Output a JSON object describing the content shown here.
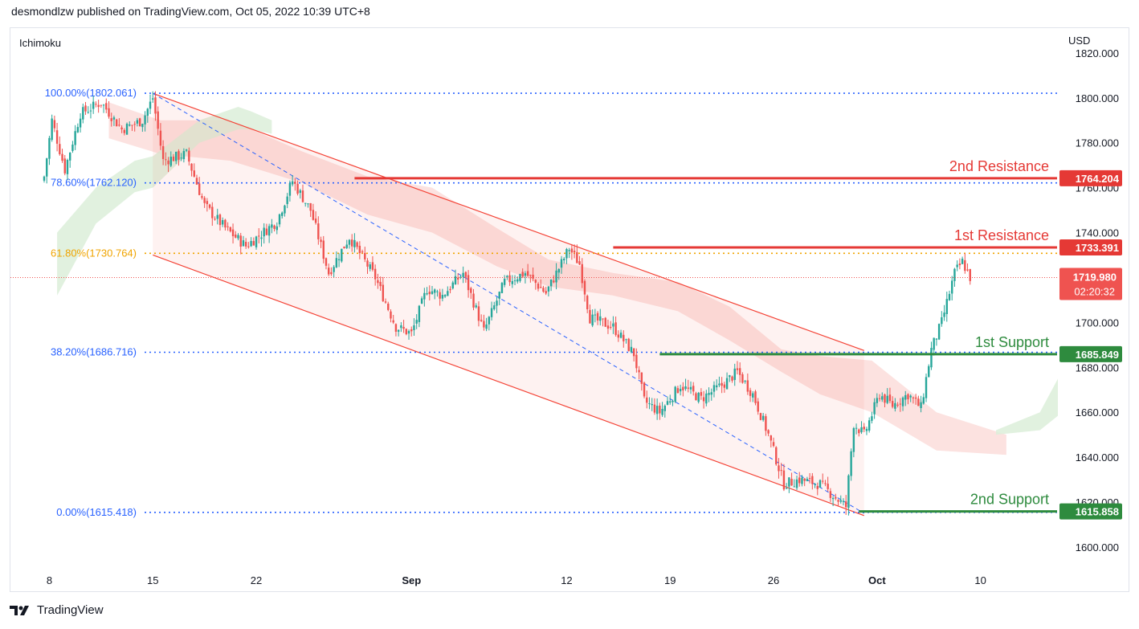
{
  "header": {
    "publisher_line": "desmondlzw published on TradingView.com, Oct 05, 2022 10:39 UTC+8"
  },
  "indicator_label": "Ichimoku",
  "currency_label": "USD",
  "footer": {
    "brand": "TradingView"
  },
  "colors": {
    "up": "#26a69a",
    "down": "#ef5350",
    "fib": "#2962ff",
    "fib_gold": "#f0a400",
    "resistance": "#e53935",
    "support": "#2e8b3e",
    "channel": "#f44336",
    "cloud_red": "#fbd8d6",
    "cloud_green": "#dcefd9",
    "axis_text": "#131722"
  },
  "chart_data": {
    "type": "candlestick",
    "symbol_price_unit": "USD",
    "ylim": [
      1593,
      1823
    ],
    "y_ticks": [
      "1820.000",
      "1800.000",
      "1780.000",
      "1760.000",
      "1740.000",
      "1720.000",
      "1700.000",
      "1680.000",
      "1660.000",
      "1640.000",
      "1620.000",
      "1600.000"
    ],
    "y_tick_values": [
      1820,
      1800,
      1780,
      1760,
      1740,
      1720,
      1700,
      1680,
      1660,
      1640,
      1620,
      1600
    ],
    "x_ticks": [
      {
        "label": "8",
        "bar": 2
      },
      {
        "label": "15",
        "bar": 42
      },
      {
        "label": "22",
        "bar": 82
      },
      {
        "label": "Sep",
        "bar": 142
      },
      {
        "label": "12",
        "bar": 202
      },
      {
        "label": "19",
        "bar": 242
      },
      {
        "label": "26",
        "bar": 282
      },
      {
        "label": "Oct",
        "bar": 322
      },
      {
        "label": "10",
        "bar": 362
      }
    ],
    "fibonacci": [
      {
        "label": "100.00%(1802.061)",
        "value": 1802.061
      },
      {
        "label": "78.60%(1762.120)",
        "value": 1762.12
      },
      {
        "label": "61.80%(1730.764)",
        "value": 1730.764
      },
      {
        "label": "38.20%(1686.716)",
        "value": 1686.716
      },
      {
        "label": "0.00%(1615.418)",
        "value": 1615.418
      }
    ],
    "levels": [
      {
        "name": "2nd Resistance",
        "value": 1764.204,
        "badge": "1764.204",
        "kind": "resistance",
        "from_bar": 120
      },
      {
        "name": "1st Resistance",
        "value": 1733.391,
        "badge": "1733.391",
        "kind": "resistance",
        "from_bar": 220
      },
      {
        "name": "1st Support",
        "value": 1685.849,
        "badge": "1685.849",
        "kind": "support",
        "from_bar": 238
      },
      {
        "name": "2nd Support",
        "value": 1615.858,
        "badge": "1615.858",
        "kind": "support",
        "from_bar": 315
      }
    ],
    "current_price": {
      "value": 1719.98,
      "label": "1719.980",
      "countdown": "02:20:32"
    },
    "channel": {
      "upper": [
        {
          "bar": 42,
          "value": 1802
        },
        {
          "bar": 317,
          "value": 1687.5
        }
      ],
      "lower": [
        {
          "bar": 42,
          "value": 1730
        },
        {
          "bar": 317,
          "value": 1614
        }
      ],
      "mid_dashed": [
        {
          "bar": 42,
          "value": 1802
        },
        {
          "bar": 317,
          "value": 1615
        }
      ]
    },
    "close_anchors": [
      {
        "bar": 0,
        "value": 1765
      },
      {
        "bar": 3,
        "value": 1790
      },
      {
        "bar": 8,
        "value": 1768
      },
      {
        "bar": 14,
        "value": 1793
      },
      {
        "bar": 22,
        "value": 1798
      },
      {
        "bar": 30,
        "value": 1786
      },
      {
        "bar": 38,
        "value": 1790
      },
      {
        "bar": 42,
        "value": 1800
      },
      {
        "bar": 46,
        "value": 1772
      },
      {
        "bar": 55,
        "value": 1775
      },
      {
        "bar": 62,
        "value": 1752
      },
      {
        "bar": 70,
        "value": 1742
      },
      {
        "bar": 78,
        "value": 1734
      },
      {
        "bar": 90,
        "value": 1745
      },
      {
        "bar": 96,
        "value": 1763
      },
      {
        "bar": 103,
        "value": 1750
      },
      {
        "bar": 110,
        "value": 1722
      },
      {
        "bar": 118,
        "value": 1738
      },
      {
        "bar": 128,
        "value": 1720
      },
      {
        "bar": 136,
        "value": 1698
      },
      {
        "bar": 142,
        "value": 1695
      },
      {
        "bar": 148,
        "value": 1715
      },
      {
        "bar": 154,
        "value": 1712
      },
      {
        "bar": 162,
        "value": 1722
      },
      {
        "bar": 170,
        "value": 1696
      },
      {
        "bar": 178,
        "value": 1718
      },
      {
        "bar": 186,
        "value": 1722
      },
      {
        "bar": 194,
        "value": 1713
      },
      {
        "bar": 203,
        "value": 1733
      },
      {
        "bar": 207,
        "value": 1726
      },
      {
        "bar": 211,
        "value": 1702
      },
      {
        "bar": 220,
        "value": 1698
      },
      {
        "bar": 228,
        "value": 1686
      },
      {
        "bar": 232,
        "value": 1665
      },
      {
        "bar": 238,
        "value": 1660
      },
      {
        "bar": 246,
        "value": 1672
      },
      {
        "bar": 254,
        "value": 1666
      },
      {
        "bar": 262,
        "value": 1672
      },
      {
        "bar": 268,
        "value": 1678
      },
      {
        "bar": 274,
        "value": 1668
      },
      {
        "bar": 280,
        "value": 1650
      },
      {
        "bar": 286,
        "value": 1628
      },
      {
        "bar": 292,
        "value": 1630
      },
      {
        "bar": 300,
        "value": 1628
      },
      {
        "bar": 306,
        "value": 1622
      },
      {
        "bar": 310,
        "value": 1618
      },
      {
        "bar": 313,
        "value": 1655
      },
      {
        "bar": 317,
        "value": 1650
      },
      {
        "bar": 323,
        "value": 1668
      },
      {
        "bar": 328,
        "value": 1663
      },
      {
        "bar": 334,
        "value": 1668
      },
      {
        "bar": 339,
        "value": 1662
      },
      {
        "bar": 343,
        "value": 1688
      },
      {
        "bar": 347,
        "value": 1700
      },
      {
        "bar": 352,
        "value": 1722
      },
      {
        "bar": 355,
        "value": 1727
      },
      {
        "bar": 358,
        "value": 1720
      }
    ],
    "cloud": {
      "red_upper": [
        {
          "bar": 25,
          "value": 1798
        },
        {
          "bar": 45,
          "value": 1790
        },
        {
          "bar": 72,
          "value": 1790
        },
        {
          "bar": 100,
          "value": 1776
        },
        {
          "bar": 125,
          "value": 1765
        },
        {
          "bar": 150,
          "value": 1760
        },
        {
          "bar": 175,
          "value": 1742
        },
        {
          "bar": 195,
          "value": 1728
        },
        {
          "bar": 220,
          "value": 1722
        },
        {
          "bar": 245,
          "value": 1718
        },
        {
          "bar": 265,
          "value": 1707
        },
        {
          "bar": 285,
          "value": 1688
        },
        {
          "bar": 300,
          "value": 1685
        },
        {
          "bar": 320,
          "value": 1683
        },
        {
          "bar": 345,
          "value": 1660
        },
        {
          "bar": 372,
          "value": 1650
        }
      ],
      "red_lower": [
        {
          "bar": 25,
          "value": 1782
        },
        {
          "bar": 45,
          "value": 1775
        },
        {
          "bar": 72,
          "value": 1772
        },
        {
          "bar": 100,
          "value": 1762
        },
        {
          "bar": 125,
          "value": 1748
        },
        {
          "bar": 150,
          "value": 1740
        },
        {
          "bar": 175,
          "value": 1725
        },
        {
          "bar": 195,
          "value": 1716
        },
        {
          "bar": 220,
          "value": 1712
        },
        {
          "bar": 245,
          "value": 1705
        },
        {
          "bar": 265,
          "value": 1692
        },
        {
          "bar": 285,
          "value": 1678
        },
        {
          "bar": 300,
          "value": 1668
        },
        {
          "bar": 320,
          "value": 1660
        },
        {
          "bar": 345,
          "value": 1643
        },
        {
          "bar": 372,
          "value": 1641
        }
      ],
      "green_upper": [
        {
          "bar": 5,
          "value": 1740
        },
        {
          "bar": 20,
          "value": 1760
        },
        {
          "bar": 35,
          "value": 1772
        },
        {
          "bar": 42,
          "value": 1774
        },
        {
          "bar": 60,
          "value": 1790
        },
        {
          "bar": 75,
          "value": 1796
        },
        {
          "bar": 80,
          "value": 1794
        },
        {
          "bar": 88,
          "value": 1790
        },
        {
          "bar": 238,
          "value": 1716
        },
        {
          "bar": 262,
          "value": 1716
        },
        {
          "bar": 368,
          "value": 1652
        },
        {
          "bar": 385,
          "value": 1660
        },
        {
          "bar": 398,
          "value": 1688
        }
      ],
      "green_lower": [
        {
          "bar": 5,
          "value": 1712
        },
        {
          "bar": 20,
          "value": 1744
        },
        {
          "bar": 35,
          "value": 1758
        },
        {
          "bar": 42,
          "value": 1760
        },
        {
          "bar": 60,
          "value": 1780
        },
        {
          "bar": 75,
          "value": 1786
        },
        {
          "bar": 80,
          "value": 1786
        },
        {
          "bar": 88,
          "value": 1784
        },
        {
          "bar": 238,
          "value": 1713
        },
        {
          "bar": 262,
          "value": 1713
        },
        {
          "bar": 368,
          "value": 1650
        },
        {
          "bar": 385,
          "value": 1652
        },
        {
          "bar": 398,
          "value": 1664
        }
      ]
    }
  }
}
